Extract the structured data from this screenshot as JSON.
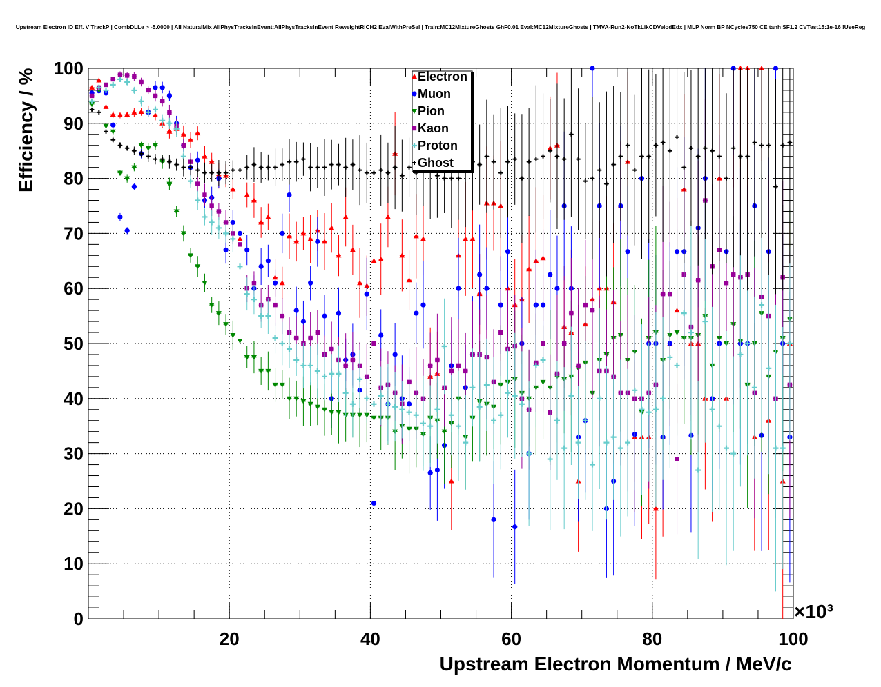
{
  "chart_data": {
    "type": "scatter",
    "title": "Upstream Electron ID Eff. V TrackP | CombDLLe > -5.0000 | All NaturalMix AllPhysTracksInEvent:AllPhysTracksInEvent ReweightRICH2 EvalWithPreSel | Train:MC12MixtureGhosts GhF0.01 Eval:MC12MixtureGhosts | TMVA-Run2-NoTkLikCDVelodEdx | MLP Norm BP NCycles750 CE tanh SF1.2 CVTest15:1e-16 !UseReg",
    "xlabel": "Upstream Electron Momentum / MeV/c",
    "ylabel": "Efficiency / %",
    "x_multiplier": "×10³",
    "xlim": [
      0,
      100
    ],
    "ylim": [
      0,
      100
    ],
    "x_ticks": [
      "20",
      "40",
      "60",
      "80",
      "100"
    ],
    "y_ticks": [
      "0",
      "10",
      "20",
      "30",
      "40",
      "50",
      "60",
      "70",
      "80",
      "90",
      "100"
    ],
    "grid": true,
    "legend_position": "top-center",
    "x": [
      1,
      2,
      3,
      4,
      5,
      6,
      7,
      8,
      9,
      10,
      11,
      12,
      13,
      14,
      15,
      16,
      17,
      18,
      19,
      20,
      21,
      22,
      23,
      24,
      25,
      26,
      27,
      28,
      29,
      30,
      31,
      32,
      33,
      34,
      35,
      36,
      37,
      38,
      39,
      40,
      41,
      42,
      43,
      44,
      45,
      46,
      47,
      48,
      49,
      50,
      51,
      52,
      53,
      54,
      55,
      56,
      57,
      58,
      59,
      60,
      61,
      62,
      63,
      64,
      65,
      66,
      67,
      68,
      69,
      70,
      71,
      72,
      73,
      74,
      75,
      76,
      77,
      78,
      79,
      80,
      81,
      82,
      83,
      84,
      85,
      86,
      87,
      88,
      89,
      90,
      91,
      92,
      93,
      94,
      95,
      96,
      97,
      98,
      99,
      100
    ],
    "series": [
      {
        "name": "Electron",
        "color": "#ff0000",
        "marker": "triangle-up",
        "values": [
          96.5,
          97.8,
          93.0,
          91.6,
          91.5,
          91.6,
          92.0,
          92.1,
          92.2,
          91.5,
          90.0,
          88.5,
          89.0,
          88.0,
          87.0,
          88.2,
          84.0,
          83.0,
          80.5,
          80.5,
          78.0,
          69.0,
          77.0,
          76.0,
          72.0,
          73.0,
          62.0,
          61.0,
          69.5,
          68.5,
          70.0,
          69.0,
          70.5,
          68.5,
          71.0,
          66.0,
          73.0,
          67.0,
          61.0,
          60.5,
          65.0,
          65.3,
          73.0,
          84.5,
          66.0,
          61.5,
          69.5,
          69.0,
          44.0,
          44.5,
          42.0,
          25.0,
          66.0,
          69.0,
          69.0,
          59.0,
          75.5,
          75.5,
          75.0,
          60.0,
          57.0,
          58.0,
          63.5,
          65.0,
          65.5,
          85.5,
          86.0,
          53.0,
          52.0,
          25.0,
          53.5,
          58.0,
          60.0,
          60.0,
          57.5,
          75.0,
          83.0,
          33.0,
          33.0,
          33.0,
          20.0,
          33.0,
          50.0,
          56.0,
          78.0,
          50.0,
          50.0,
          40.0,
          40.0,
          80.0,
          40.0,
          100.0,
          100.0,
          100.0,
          33.0,
          100.0,
          36.0,
          100.0,
          25.0,
          50.0
        ]
      },
      {
        "name": "Muon",
        "color": "#0000ff",
        "marker": "circle",
        "values": [
          95.5,
          95.9,
          95.5,
          89.7,
          73.0,
          70.5,
          78.5,
          84.5,
          92.0,
          96.5,
          96.5,
          95.0,
          90.0,
          86.0,
          82.0,
          83.3,
          76.0,
          76.5,
          80.0,
          67.0,
          72.0,
          70.0,
          67.0,
          60.0,
          64.0,
          65.0,
          61.0,
          70.0,
          77.0,
          56.0,
          54.0,
          61.0,
          68.5,
          55.0,
          40.0,
          55.5,
          47.0,
          48.0,
          41.5,
          59.0,
          21.0,
          51.5,
          39.0,
          48.0,
          40.0,
          39.0,
          55.5,
          57.0,
          26.5,
          27.0,
          31.5,
          46.0,
          60.0,
          42.0,
          48.0,
          62.5,
          60.0,
          18.0,
          57.0,
          66.7,
          16.7,
          50.0,
          30.0,
          57.0,
          57.0,
          62.5,
          60.0,
          75.0,
          60.0,
          33.0,
          36.0,
          100.0,
          75.0,
          20.0,
          25.0,
          75.0,
          66.7,
          33.5,
          80.0,
          50.0,
          50.0,
          33.0,
          50.0,
          66.7,
          66.7,
          33.3,
          71.0,
          80.0,
          40.0,
          50.0,
          66.7,
          100.0,
          50.0,
          50.0,
          75.0,
          33.3,
          66.7,
          100.0,
          50.0,
          33.0
        ]
      },
      {
        "name": "Pion",
        "color": "#008800",
        "marker": "triangle-down",
        "values": [
          93.5,
          96.0,
          89.5,
          88.5,
          81.0,
          80.0,
          82.0,
          86.0,
          85.5,
          86.0,
          83.0,
          79.0,
          74.0,
          70.0,
          66.0,
          64.0,
          61.0,
          57.0,
          55.5,
          53.5,
          51.5,
          50.5,
          47.5,
          47.5,
          45.0,
          45.0,
          42.5,
          42.5,
          40.0,
          40.0,
          39.5,
          39.0,
          38.5,
          38.0,
          37.5,
          37.5,
          37.0,
          37.0,
          37.0,
          37.0,
          36.5,
          36.5,
          36.5,
          34.0,
          35.0,
          34.5,
          34.5,
          33.5,
          36.5,
          36.0,
          34.0,
          35.5,
          40.0,
          33.0,
          36.5,
          39.5,
          39.0,
          38.5,
          42.5,
          43.0,
          43.5,
          41.0,
          40.0,
          42.0,
          43.0,
          42.0,
          44.0,
          43.5,
          44.0,
          45.5,
          46.5,
          41.0,
          47.0,
          48.0,
          51.0,
          51.5,
          47.0,
          48.5,
          37.5,
          51.0,
          52.0,
          47.0,
          51.5,
          52.0,
          51.0,
          51.0,
          51.5,
          55.0,
          46.0,
          51.0,
          50.0,
          53.5,
          50.5,
          42.5,
          50.0,
          55.5,
          44.0,
          48.5,
          51.0,
          54.5
        ]
      },
      {
        "name": "Kaon",
        "color": "#990099",
        "marker": "square",
        "values": [
          95.0,
          96.5,
          97.0,
          98.0,
          98.8,
          98.7,
          98.5,
          97.5,
          96.0,
          95.0,
          94.0,
          92.0,
          89.5,
          86.0,
          83.0,
          79.0,
          77.0,
          75.0,
          74.0,
          72.0,
          70.0,
          68.0,
          60.0,
          61.0,
          57.0,
          58.0,
          57.0,
          55.0,
          52.0,
          51.0,
          50.0,
          51.0,
          52.0,
          48.0,
          49.0,
          47.0,
          46.0,
          47.0,
          46.0,
          44.0,
          50.0,
          42.0,
          42.5,
          41.0,
          39.0,
          43.0,
          41.0,
          40.0,
          46.0,
          47.0,
          42.0,
          45.0,
          46.0,
          45.0,
          48.0,
          48.0,
          47.5,
          43.0,
          52.0,
          49.0,
          49.5,
          40.0,
          38.0,
          46.5,
          50.0,
          37.5,
          44.5,
          50.0,
          55.5,
          46.0,
          57.0,
          56.0,
          45.0,
          45.0,
          44.0,
          41.0,
          41.0,
          40.0,
          40.0,
          41.0,
          42.5,
          59.0,
          59.0,
          29.0,
          62.5,
          53.0,
          61.5,
          76.0,
          64.0,
          67.0,
          61.0,
          62.5,
          62.0,
          62.5,
          41.0,
          58.5,
          55.0,
          40.0,
          62.0,
          42.5
        ]
      },
      {
        "name": "Proton",
        "color": "#66cccc",
        "marker": "plus",
        "values": [
          94.0,
          96.5,
          96.0,
          97.0,
          98.0,
          97.5,
          96.0,
          94.0,
          92.0,
          92.5,
          90.5,
          90.0,
          89.0,
          84.0,
          79.5,
          76.0,
          73.0,
          72.0,
          71.0,
          70.0,
          69.0,
          64.0,
          59.0,
          58.0,
          55.0,
          55.0,
          51.0,
          50.0,
          49.0,
          47.0,
          46.0,
          46.0,
          45.0,
          44.0,
          44.5,
          44.5,
          41.0,
          39.0,
          43.5,
          40.0,
          39.0,
          40.5,
          39.0,
          38.5,
          38.0,
          37.5,
          37.0,
          35.5,
          35.0,
          38.0,
          49.5,
          37.0,
          35.0,
          32.0,
          42.0,
          38.5,
          42.5,
          36.0,
          37.0,
          41.0,
          40.5,
          39.0,
          30.0,
          46.0,
          47.0,
          29.0,
          36.0,
          31.0,
          40.5,
          32.0,
          36.0,
          28.0,
          40.0,
          32.0,
          33.0,
          31.0,
          32.0,
          41.5,
          38.0,
          37.5,
          38.0,
          40.0,
          47.5,
          46.0,
          55.5,
          52.0,
          27.0,
          54.0,
          38.0,
          35.0,
          31.0,
          30.0,
          48.0,
          50.0,
          42.0,
          57.0,
          45.5,
          31.0,
          31.0,
          50.0
        ]
      },
      {
        "name": "Ghost",
        "color": "#000000",
        "marker": "cross",
        "values": [
          92.5,
          92.0,
          88.5,
          87.0,
          86.0,
          85.5,
          85.0,
          84.5,
          84.0,
          83.5,
          83.5,
          83.0,
          82.5,
          82.0,
          82.0,
          81.5,
          81.0,
          81.0,
          81.0,
          81.0,
          81.5,
          81.5,
          82.0,
          82.5,
          82.0,
          82.0,
          82.0,
          82.5,
          83.0,
          83.0,
          83.5,
          82.0,
          82.0,
          82.0,
          82.5,
          82.5,
          82.0,
          82.5,
          81.5,
          81.0,
          81.0,
          81.5,
          81.0,
          82.0,
          80.5,
          82.0,
          81.0,
          81.5,
          81.5,
          80.5,
          80.0,
          80.0,
          80.0,
          81.5,
          83.0,
          82.5,
          84.0,
          83.0,
          81.0,
          83.0,
          83.5,
          80.0,
          83.0,
          83.5,
          84.0,
          85.0,
          84.0,
          83.5,
          88.0,
          83.5,
          79.5,
          80.0,
          81.5,
          79.0,
          82.5,
          84.0,
          86.0,
          81.5,
          84.0,
          84.0,
          86.0,
          86.5,
          85.0,
          87.5,
          82.0,
          85.5,
          84.0,
          85.5,
          85.0,
          84.0,
          80.0,
          85.5,
          84.0,
          84.0,
          86.5,
          86.0,
          86.0,
          78.5,
          86.0,
          86.5
        ]
      }
    ]
  }
}
